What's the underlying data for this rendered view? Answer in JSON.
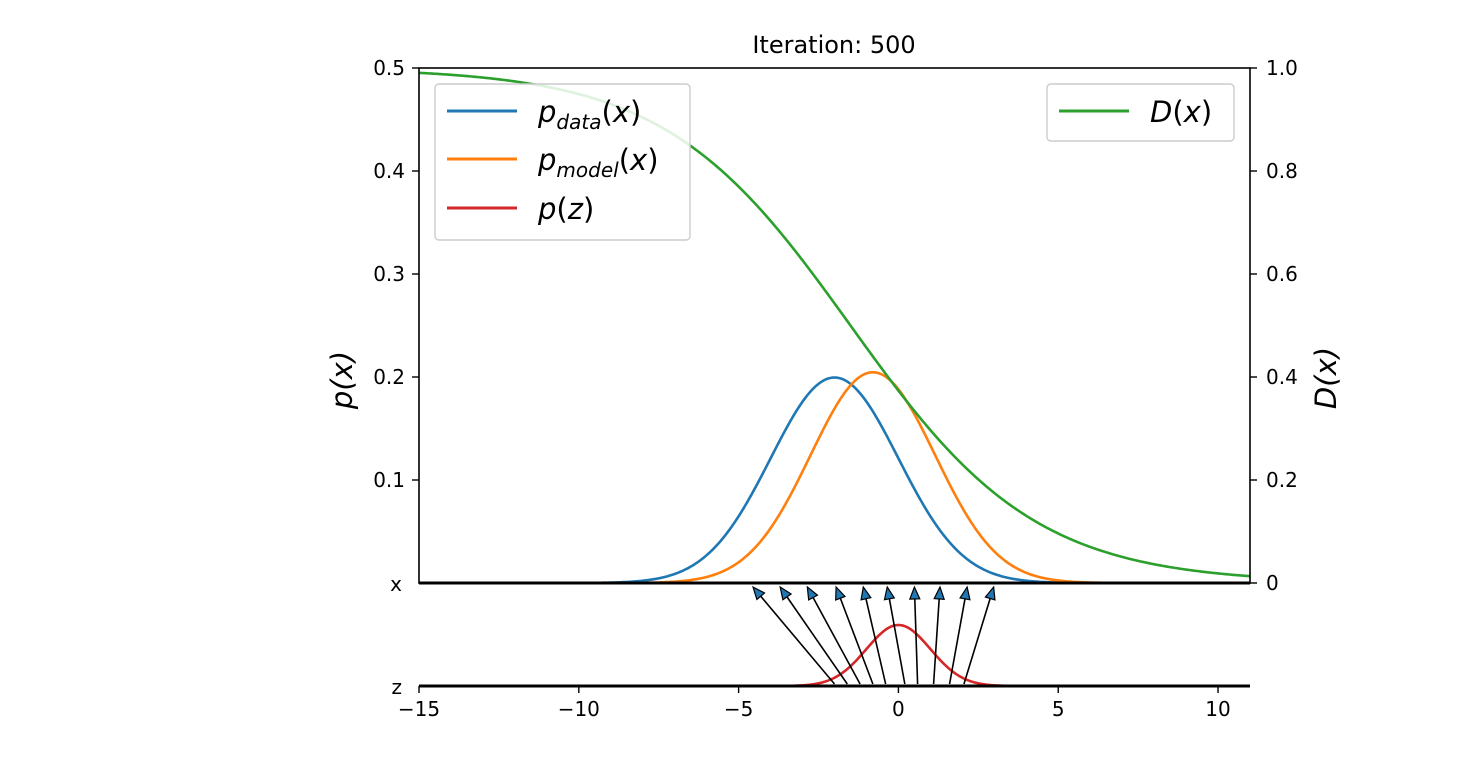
{
  "chart_data": {
    "type": "line",
    "title": "Iteration: 500",
    "xlim": [
      -15,
      11
    ],
    "x_ticks": [
      -15,
      -10,
      -5,
      0,
      5,
      10
    ],
    "x_tick_labels": [
      "−15",
      "−10",
      "−5",
      "0",
      "5",
      "10"
    ],
    "ylim_left": [
      0,
      0.5
    ],
    "y_ticks_left": [
      0.1,
      0.2,
      0.3,
      0.4,
      0.5
    ],
    "y_tick_labels_left": [
      "0.1",
      "0.2",
      "0.3",
      "0.4",
      "0.5"
    ],
    "ylabel_left": "p(x)",
    "ylim_right": [
      0,
      1.0
    ],
    "y_ticks_right": [
      0,
      0.2,
      0.4,
      0.6,
      0.8,
      1.0
    ],
    "y_tick_labels_right": [
      "0",
      "0.2",
      "0.4",
      "0.6",
      "0.8",
      "1.0"
    ],
    "ylabel_right": "D(x)",
    "grid": false,
    "series": [
      {
        "name": "p_data(x)",
        "color": "#1f77b4",
        "kind": "gaussian",
        "mean": -2.0,
        "std": 2.0,
        "peak": 0.1995
      },
      {
        "name": "p_model(x)",
        "color": "#ff7f0e",
        "kind": "gaussian",
        "mean": -0.8,
        "std": 1.95,
        "peak": 0.2046
      },
      {
        "name": "D(x)",
        "color": "#2ca02c",
        "kind": "sigmoid_decreasing",
        "axis": "right",
        "center": -1.5,
        "scale": 2.9,
        "approx_values": {
          "x": [
            -15,
            -10,
            -5,
            -1.5,
            0,
            5,
            10,
            11
          ],
          "y": [
            0.99,
            0.95,
            0.77,
            0.5,
            0.37,
            0.1,
            0.03,
            0.022
          ]
        }
      },
      {
        "name": "p(z)",
        "color": "#d62728",
        "kind": "gaussian",
        "panel": "mapping",
        "mean": 0.0,
        "std": 1.0,
        "peak": 0.4
      }
    ],
    "mapping_panel": {
      "row_labels": {
        "x": "x",
        "z": "z"
      },
      "z_points": [
        -2.0,
        -1.6,
        -1.2,
        -0.8,
        -0.4,
        0.2,
        0.6,
        1.1,
        1.6,
        2.05
      ],
      "x_targets": [
        -4.55,
        -3.7,
        -2.85,
        -1.95,
        -1.1,
        -0.35,
        0.5,
        1.3,
        2.15,
        2.98
      ]
    },
    "legend_left": {
      "placement": "top-left",
      "entries": [
        "p_data(x)",
        "p_model(x)",
        "p(z)"
      ]
    },
    "legend_right": {
      "placement": "top-right",
      "entries": [
        "D(x)"
      ]
    }
  }
}
